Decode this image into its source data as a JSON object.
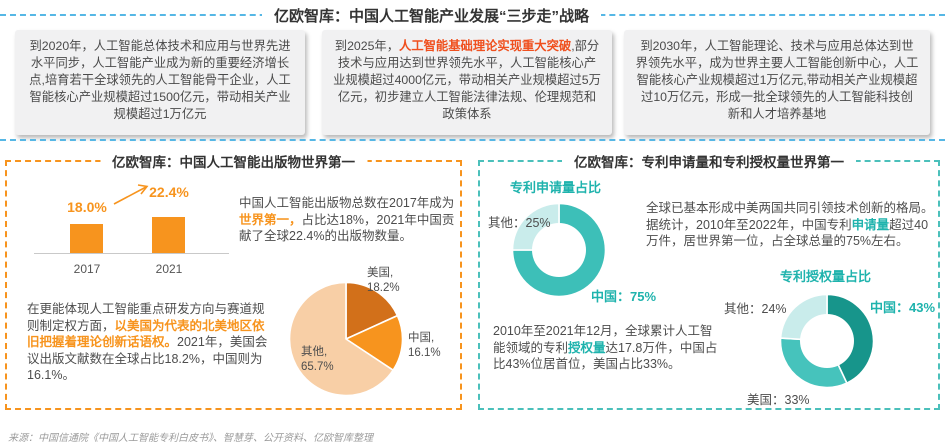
{
  "colors": {
    "blue_dash": "#56B7E5",
    "orange": "#F7941E",
    "orange_dark": "#D2701A",
    "peach": "#F8CFA6",
    "red_highlight": "#F0501E",
    "teal": "#1FB3AD",
    "teal_dark": "#17958B",
    "teal_mid": "#46C3BC",
    "teal_light": "#C9ECEB",
    "box_bg": "#F1F1F2",
    "body_text": "#4D4D4D"
  },
  "main_title": "亿欧智库：中国人工智能产业发展“三步走”战略",
  "strategy_boxes": [
    {
      "segments": [
        {
          "t": "到2020年，人工智能总体技术和应用与世界先进水平同步，人工智能产业成为新的重要经济增长点,培育若干全球领先的人工智能骨干企业，人工智能核心产业规模超过1500亿元，带动相关产业规模超过1万亿元"
        }
      ]
    },
    {
      "segments": [
        {
          "t": "到2025年，"
        },
        {
          "t": "人工智能基础理论实现重大突破",
          "hl": "red"
        },
        {
          "t": ",部分技术与应用达到世界领先水平，人工智能核心产业规模超过4000亿元，带动相关产业规模超过5万亿元，初步建立人工智能法律法规、伦理规范和政策体系"
        }
      ]
    },
    {
      "segments": [
        {
          "t": "到2030年，人工智能理论、技术与应用总体达到世界领先水平，成为世界主要人工智能创新中心，人工智能核心产业规模超过1万亿元,带动相关产业规模超过10万亿元，形成一批全球领先的人工智能科技创新和人才培养基地"
        }
      ]
    }
  ],
  "left_panel": {
    "title": "亿欧智库：中国人工智能出版物世界第一",
    "note1_segments": [
      {
        "t": "中国人工智能出版物总数在2017年成为"
      },
      {
        "t": "世界第一，",
        "hl": "orange"
      },
      {
        "t": "占比达18%，2021年中国贡献了全球22.4%的出版物数量。"
      }
    ],
    "note2_segments": [
      {
        "t": "在更能体现人工智能重点研发方向与赛道规则制定权方面，"
      },
      {
        "t": "以美国为代表的北美地区依旧把握着理论创新话语权。",
        "hl": "orange"
      },
      {
        "t": "2021年，美国会议出版文献数在全球占比18.2%，中国则为16.1%。"
      }
    ]
  },
  "right_panel": {
    "title": "亿欧智库：专利申请量和专利授权量世界第一",
    "note1_segments": [
      {
        "t": "全球已基本形成中美两国共同引领技术创新的格局。据统计，2010年至2022年，中国专利"
      },
      {
        "t": "申请量",
        "hl": "teal"
      },
      {
        "t": "超过40万件，居世界第一位，占全球总量的75%左右。"
      }
    ],
    "note2_segments": [
      {
        "t": "2010年至2021年12月，全球累计人工智能领域的专利"
      },
      {
        "t": "授权量",
        "hl": "teal"
      },
      {
        "t": "达17.8万件，中国占比43%位居首位，美国占比33%。"
      }
    ]
  },
  "source": "来源：中国信通院《中国人工智能专利白皮书》、智慧芽、公开资料、亿欧智库整理",
  "chart_data": [
    {
      "type": "bar",
      "title": "",
      "categories": [
        "2017",
        "2021"
      ],
      "values": [
        18.0,
        22.4
      ],
      "labels": [
        "18.0%",
        "22.4%"
      ],
      "bar_color": "#F7941E",
      "ylim": [
        0,
        25
      ],
      "axis_visible": false,
      "grid": false
    },
    {
      "type": "pie",
      "title": "",
      "labels": [
        "美国",
        "中国",
        "其他"
      ],
      "values": [
        18.2,
        16.1,
        65.7
      ],
      "colors": [
        "#D2701A",
        "#F7941E",
        "#F8CFA6"
      ],
      "point_labels": [
        "美国,\n18.2%",
        "中国,\n16.1%",
        "其他,\n65.7%"
      ],
      "start_angle_deg": -90,
      "clockwise": true
    },
    {
      "type": "pie",
      "subtype": "donut",
      "title": "专利申请量占比",
      "labels": [
        "中国",
        "其他"
      ],
      "values": [
        75,
        25
      ],
      "colors": [
        "#3DBFB8",
        "#C9ECEB"
      ],
      "point_labels": [
        "中国：75%",
        "其他：25%"
      ],
      "start_angle_deg": -90,
      "clockwise": true
    },
    {
      "type": "pie",
      "subtype": "donut",
      "title": "专利授权量占比",
      "labels": [
        "中国",
        "美国",
        "其他"
      ],
      "values": [
        43,
        33,
        24
      ],
      "colors": [
        "#17958B",
        "#46C3BC",
        "#C9ECEB"
      ],
      "point_labels": [
        "中国：43%",
        "美国：33%",
        "其他：24%"
      ],
      "start_angle_deg": -90,
      "clockwise": true
    }
  ]
}
